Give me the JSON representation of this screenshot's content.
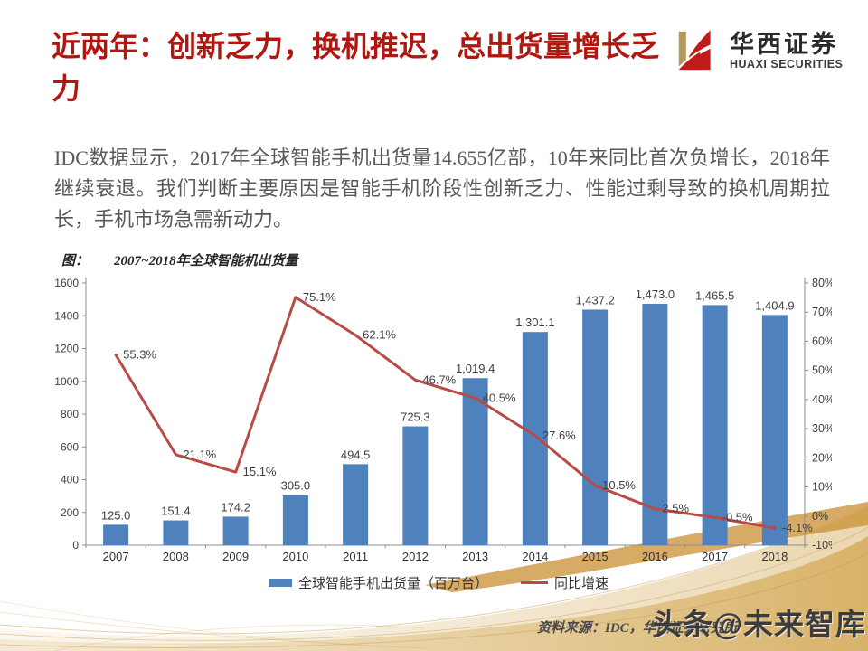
{
  "header": {
    "title": "近两年：创新乏力，换机推迟，总出货量增长乏力",
    "logo": {
      "cn": "华西证券",
      "en": "HUAXI SECURITIES",
      "gold": "#B3985F",
      "red": "#C01B17"
    }
  },
  "body": {
    "paragraph": "IDC数据显示，2017年全球智能手机出货量14.655亿部，10年来同比首次负增长，2018年继续衰退。我们判断主要原因是智能手机阶段性创新乏力、性能过剩导致的换机周期拉长，手机市场急需新动力。"
  },
  "figure": {
    "caption_prefix": "图：",
    "caption": "2007~2018年全球智能机出货量",
    "source": "资料来源：IDC，华西证券研究所"
  },
  "watermark": "头条@未来智库",
  "chart_data": {
    "type": "bar",
    "title": "2007~2018年全球智能机出货量",
    "categories": [
      "2007",
      "2008",
      "2009",
      "2010",
      "2011",
      "2012",
      "2013",
      "2014",
      "2015",
      "2016",
      "2017",
      "2018"
    ],
    "series": [
      {
        "name": "全球智能手机出货量（百万台）",
        "type": "bar",
        "color": "#4F81BD",
        "axis": "left",
        "values": [
          125.0,
          151.4,
          174.2,
          305.0,
          494.5,
          725.3,
          1019.4,
          1301.1,
          1437.2,
          1473.0,
          1465.5,
          1404.9
        ],
        "labels": [
          "125.0",
          "151.4",
          "174.2",
          "305.0",
          "494.5",
          "725.3",
          "1,019.4",
          "1,301.1",
          "1,437.2",
          "1,473.0",
          "1,465.5",
          "1,404.9"
        ]
      },
      {
        "name": "同比增速",
        "type": "line",
        "color": "#B84B45",
        "axis": "right",
        "values": [
          55.3,
          21.1,
          15.1,
          75.1,
          62.1,
          46.7,
          40.5,
          27.6,
          10.5,
          2.5,
          -0.5,
          -4.1
        ],
        "labels": [
          "55.3%",
          "21.1%",
          "15.1%",
          "75.1%",
          "62.1%",
          "46.7%",
          "40.5%",
          "27.6%",
          "10.5%",
          "2.5%",
          "-0.5%",
          "-4.1%"
        ]
      }
    ],
    "left_axis": {
      "min": 0,
      "max": 1600,
      "step": 200,
      "ticks": [
        "0",
        "200",
        "400",
        "600",
        "800",
        "1000",
        "1200",
        "1400",
        "1600"
      ]
    },
    "right_axis": {
      "min": -10,
      "max": 80,
      "step": 10,
      "ticks": [
        "-10%",
        "0%",
        "10%",
        "20%",
        "30%",
        "40%",
        "50%",
        "60%",
        "70%",
        "80%"
      ]
    },
    "grid": false,
    "legend_position": "bottom"
  }
}
